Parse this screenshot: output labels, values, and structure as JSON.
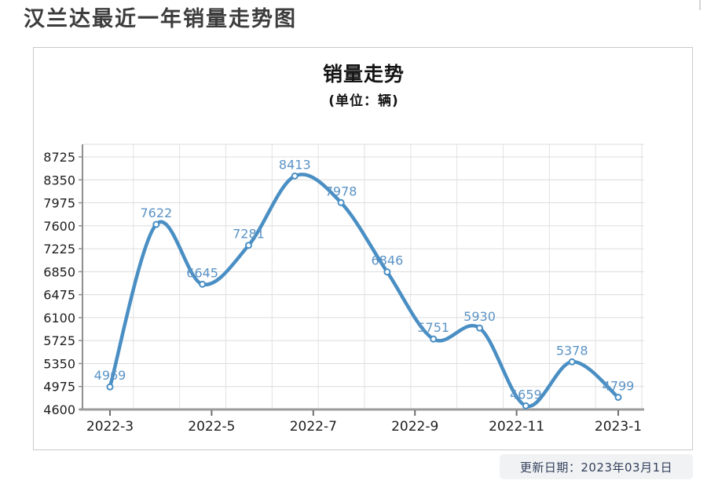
{
  "page": {
    "title": "汉兰达最近一年销量走势图"
  },
  "chart": {
    "title": "销量走势",
    "subtitle": "(单位：辆)"
  },
  "footer": {
    "update_date": "更新日期：2023年03月1日"
  },
  "chart_data": {
    "type": "line",
    "title": "销量走势",
    "subtitle": "(单位：辆)",
    "unit": "辆",
    "smooth": true,
    "grid": true,
    "values": [
      4969,
      7622,
      6645,
      7281,
      8413,
      7978,
      6846,
      5751,
      5930,
      4659,
      5378,
      4799
    ],
    "point_labels": [
      "4969",
      "7622",
      "6645",
      "7281",
      "8413",
      "7978",
      "6846",
      "5751",
      "5930",
      "4659",
      "5378",
      "4799"
    ],
    "x_tick_labels": [
      "2022-3",
      "2022-5",
      "2022-7",
      "2022-9",
      "2022-11",
      "2023-1"
    ],
    "y_ticks": [
      4600,
      4975,
      5350,
      5725,
      6100,
      6475,
      6850,
      7225,
      7600,
      7975,
      8350,
      8725
    ],
    "ylim": [
      4600,
      8725
    ],
    "colors": {
      "line": "#4a8fc4",
      "marker_fill": "#ffffff",
      "data_label": "#5b93c5",
      "gridline": "#dcdcdc",
      "vertical_gridline": "#e2e2e2",
      "axis": "#8f8f8f",
      "tick_label": "#1d1d1d"
    }
  }
}
